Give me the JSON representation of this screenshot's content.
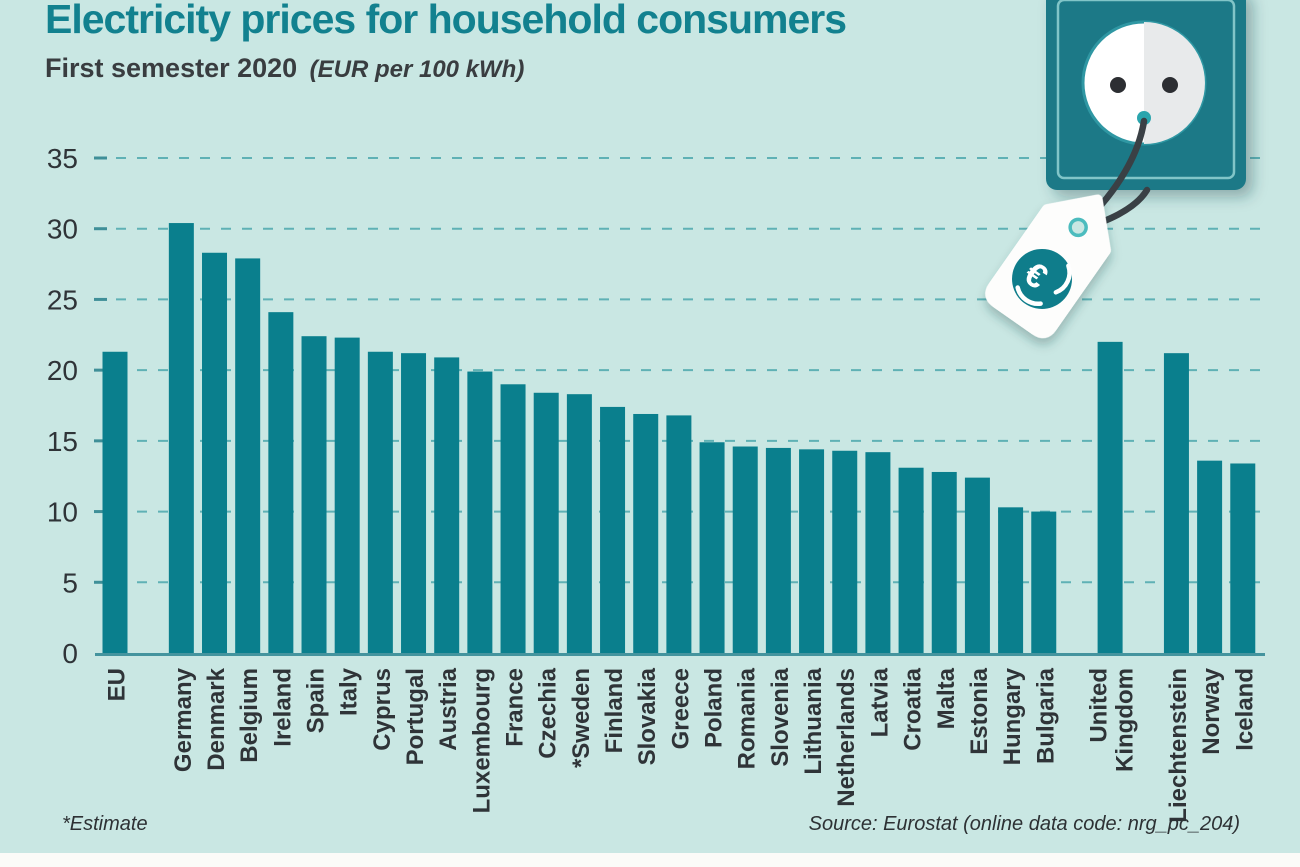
{
  "header": {
    "title": "Electricity prices for household consumers",
    "subtitle_bold": "First semester 2020",
    "subtitle_note": "(EUR per 100 kWh)"
  },
  "footer": {
    "estimate_note": "*Estimate",
    "source": "Source: Eurostat (online data code: nrg_pc_204)"
  },
  "colors": {
    "background": "#c9e7e3",
    "bar": "#0a7f8d",
    "title_teal": "#12818f",
    "gridline": "#5fb1b5",
    "tick": "#3f8f98",
    "axis_line": "#44949e",
    "label_text": "#2f3438",
    "illustration_teal": "#1e7987"
  },
  "icons": {
    "socket": "power-socket-icon",
    "cord": "power-cord-icon",
    "tag": "price-tag-icon",
    "euro": "euro-recycle-icon"
  },
  "chart_data": {
    "type": "bar",
    "title": "Electricity prices for household consumers",
    "subtitle": "First semester 2020",
    "unit": "EUR per 100 kWh",
    "xlabel": "",
    "ylabel": "EUR per 100 kWh",
    "ylim": [
      0,
      35
    ],
    "yticks": [
      0,
      5,
      10,
      15,
      20,
      25,
      30,
      35
    ],
    "grid": "dashed-horizontal",
    "legend": "none",
    "categories": [
      "EU",
      "Germany",
      "Denmark",
      "Belgium",
      "Ireland",
      "Spain",
      "Italy",
      "Cyprus",
      "Portugal",
      "Austria",
      "Luxembourg",
      "France",
      "Czechia",
      "*Sweden",
      "Finland",
      "Slovakia",
      "Greece",
      "Poland",
      "Romania",
      "Slovenia",
      "Lithuania",
      "Netherlands",
      "Latvia",
      "Croatia",
      "Malta",
      "Estonia",
      "Hungary",
      "Bulgaria",
      "United\nKingdom",
      "Liechtenstein",
      "Norway",
      "Iceland"
    ],
    "values": [
      21.3,
      30.4,
      28.3,
      27.9,
      24.1,
      22.4,
      22.3,
      21.3,
      21.2,
      20.9,
      19.9,
      19.0,
      18.4,
      18.3,
      17.4,
      16.9,
      16.8,
      14.9,
      14.6,
      14.5,
      14.4,
      14.3,
      14.2,
      13.1,
      12.8,
      12.4,
      10.3,
      10.0,
      22.0,
      21.2,
      13.6,
      13.4
    ],
    "slots": [
      0,
      2,
      3,
      4,
      5,
      6,
      7,
      8,
      9,
      10,
      11,
      12,
      13,
      14,
      15,
      16,
      17,
      18,
      19,
      20,
      21,
      22,
      23,
      24,
      25,
      26,
      27,
      28,
      30,
      32,
      33,
      34
    ],
    "estimated": [
      "Sweden"
    ]
  }
}
